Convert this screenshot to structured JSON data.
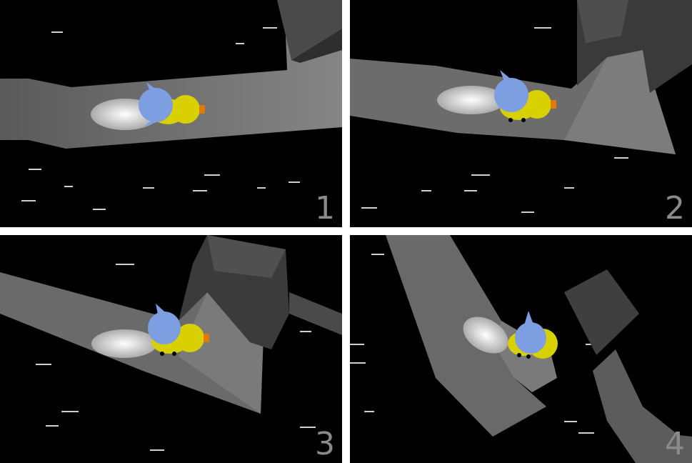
{
  "panels": [
    {
      "label": "1"
    },
    {
      "label": "2"
    },
    {
      "label": "3"
    },
    {
      "label": "4"
    }
  ],
  "colors": {
    "background": "#000000",
    "separator": "#ffffff",
    "path": "#6f6f6f",
    "block": "#3c3c3c",
    "trail": "#e8e8e8",
    "character_body": "#d8d000",
    "character_shell": "#7e9ee2",
    "beak": "#e07a00",
    "label": "#8a8a8a"
  },
  "icons": [
    "blue-yellow-character-icon"
  ]
}
